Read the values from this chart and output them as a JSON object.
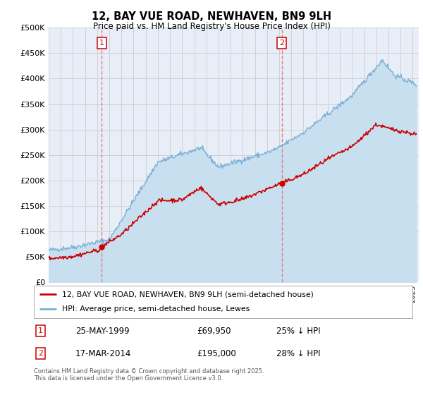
{
  "title": "12, BAY VUE ROAD, NEWHAVEN, BN9 9LH",
  "subtitle": "Price paid vs. HM Land Registry's House Price Index (HPI)",
  "legend_line1": "12, BAY VUE ROAD, NEWHAVEN, BN9 9LH (semi-detached house)",
  "legend_line2": "HPI: Average price, semi-detached house, Lewes",
  "footnote": "Contains HM Land Registry data © Crown copyright and database right 2025.\nThis data is licensed under the Open Government Licence v3.0.",
  "sale1_date": "25-MAY-1999",
  "sale1_price": "£69,950",
  "sale1_hpi": "25% ↓ HPI",
  "sale1_year": 1999.38,
  "sale1_price_val": 69950,
  "sale2_date": "17-MAR-2014",
  "sale2_price": "£195,000",
  "sale2_hpi": "28% ↓ HPI",
  "sale2_year": 2014.21,
  "sale2_price_val": 195000,
  "ylim": [
    0,
    500000
  ],
  "yticks": [
    0,
    50000,
    100000,
    150000,
    200000,
    250000,
    300000,
    350000,
    400000,
    450000,
    500000
  ],
  "xlim_start": 1995.0,
  "xlim_end": 2025.5,
  "red_color": "#cc0000",
  "blue_color": "#7bafd4",
  "blue_fill": "#c8dff0",
  "grid_color": "#cccccc",
  "plot_bg": "#e8eef8",
  "vline_color": "#e08080"
}
